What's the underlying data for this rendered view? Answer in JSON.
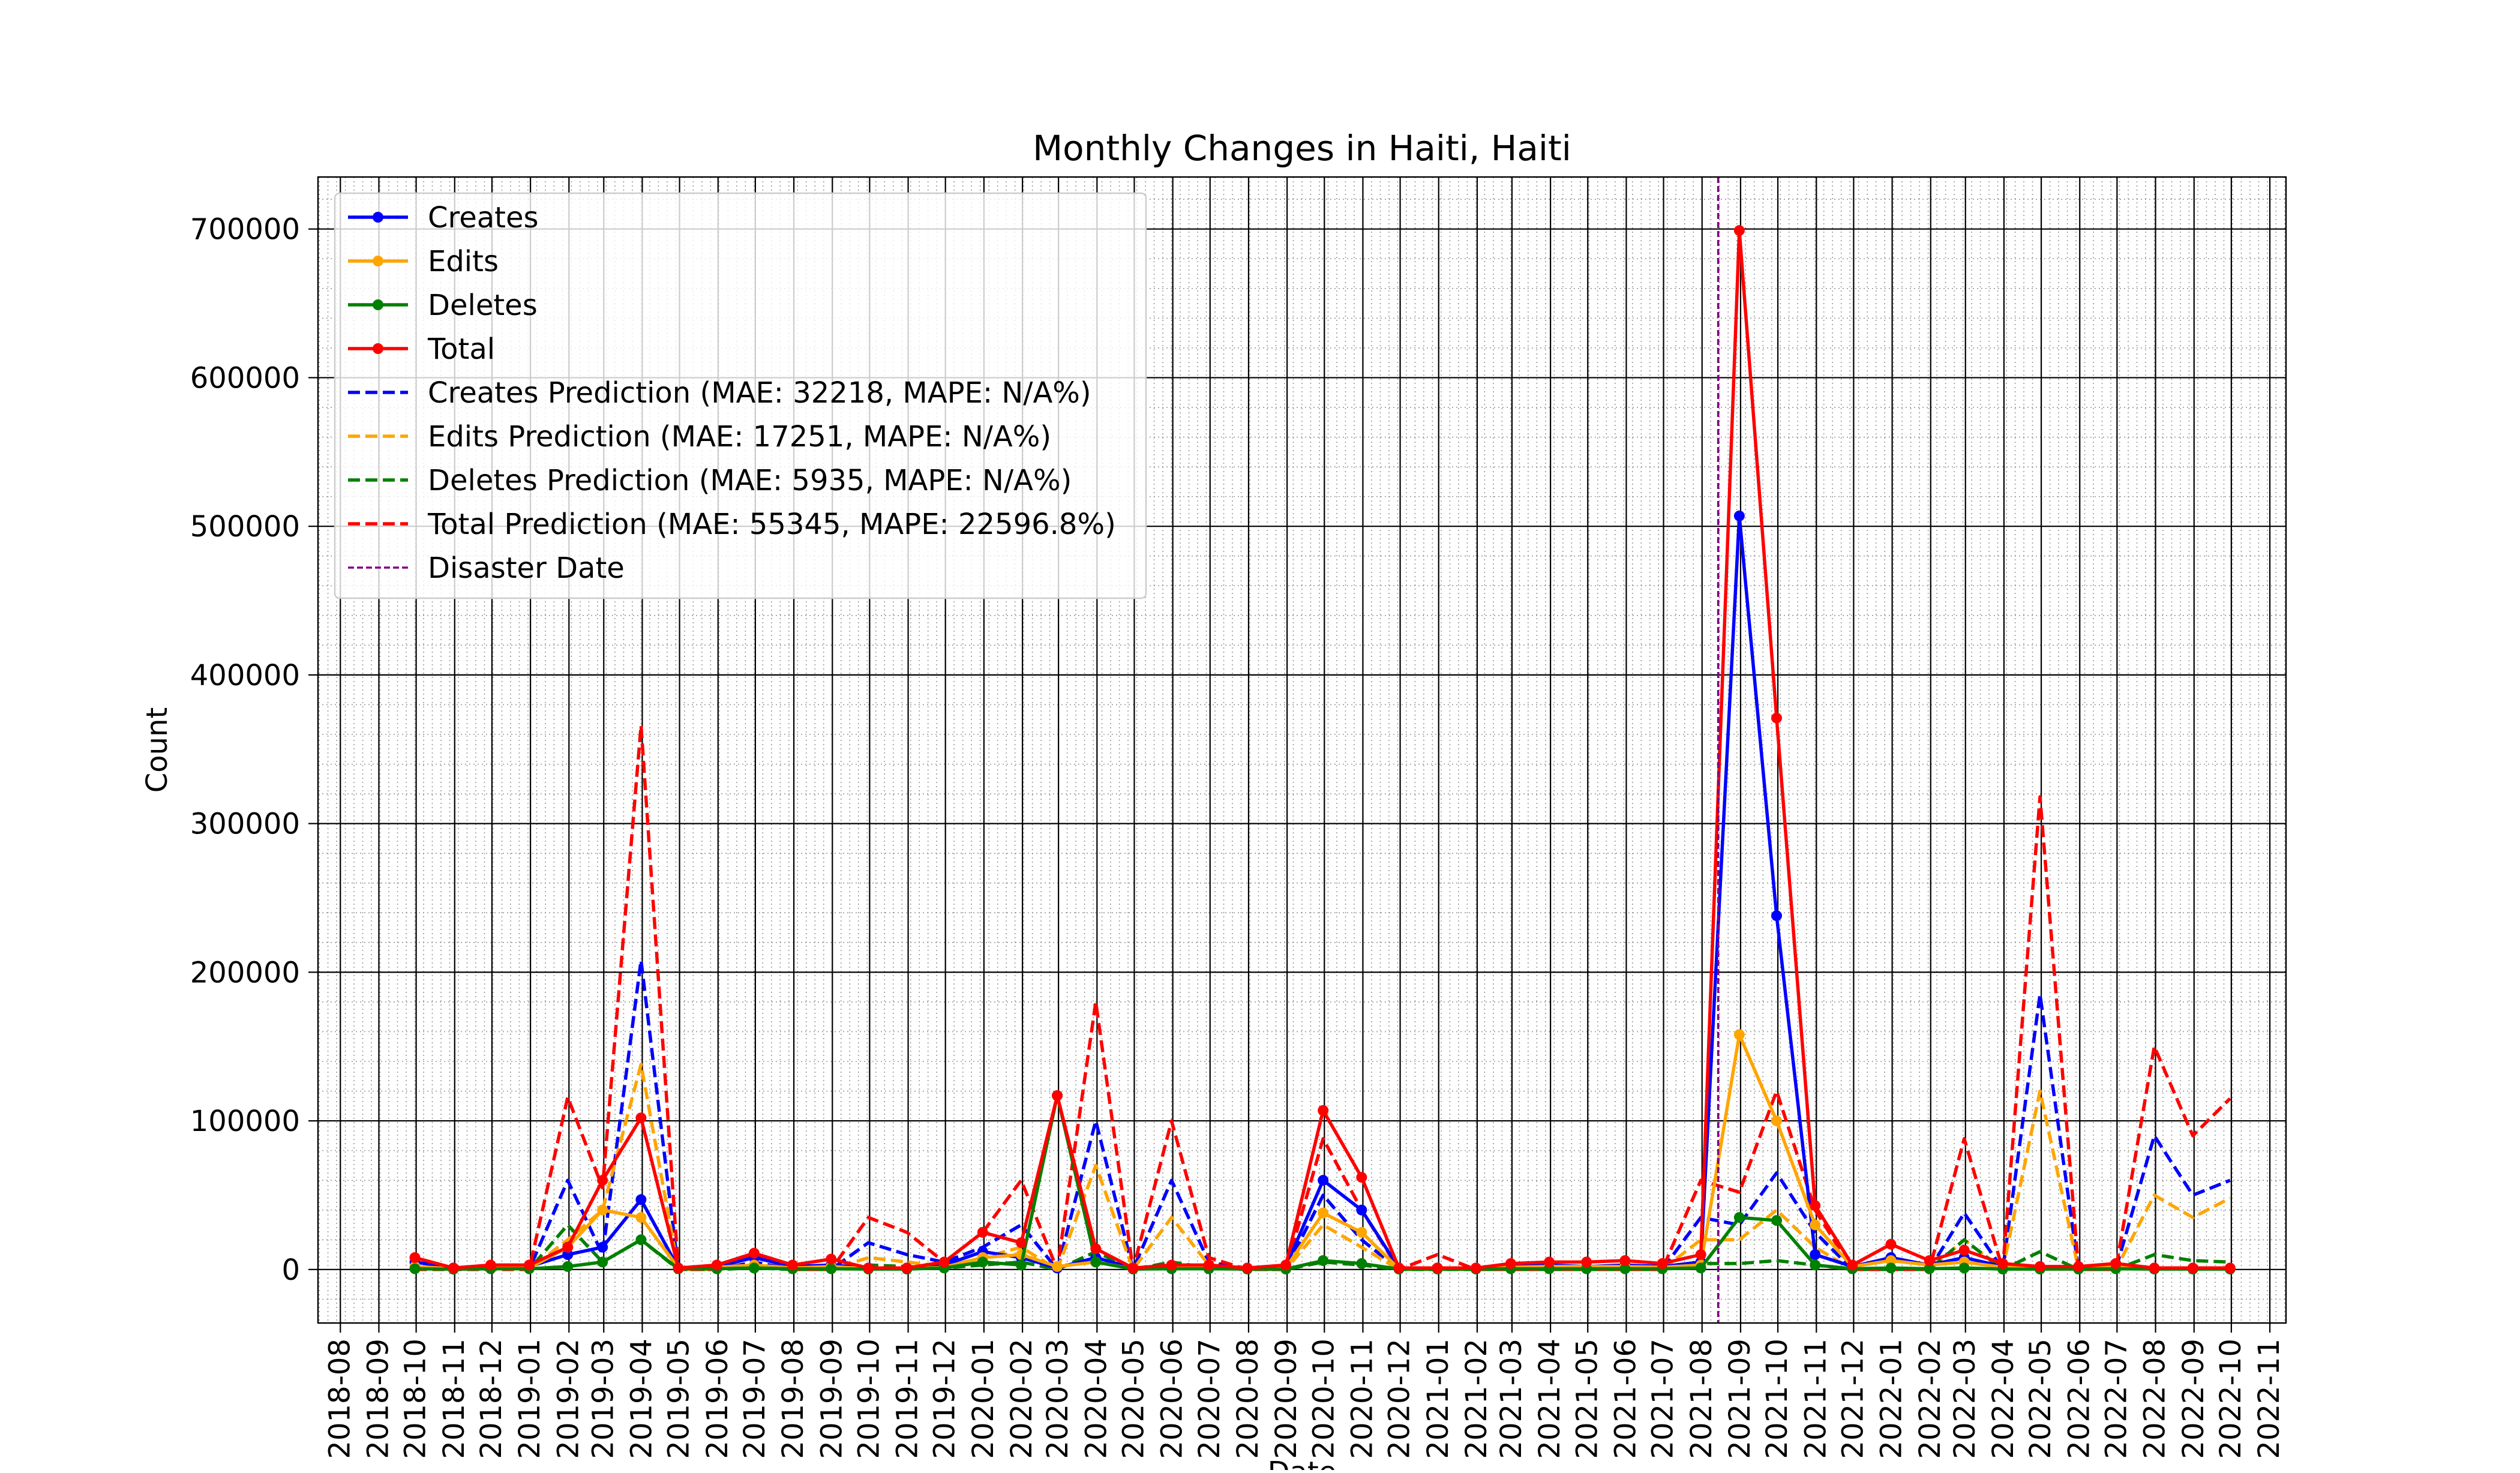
{
  "chart_data": {
    "type": "line",
    "title": "Monthly Changes in Haiti, Haiti",
    "xlabel": "Date",
    "ylabel": "Count",
    "ylim": [
      -36000,
      735000
    ],
    "xlim": [
      "2018-07-14",
      "2022-11-14"
    ],
    "grid": true,
    "legend_position": "top-left",
    "yticks": [
      0,
      100000,
      200000,
      300000,
      400000,
      500000,
      600000,
      700000
    ],
    "yticklabels": [
      "0",
      "100000",
      "200000",
      "300000",
      "400000",
      "500000",
      "600000",
      "700000"
    ],
    "xticks": [
      "2018-08",
      "2018-09",
      "2018-10",
      "2018-11",
      "2018-12",
      "2019-01",
      "2019-02",
      "2019-03",
      "2019-04",
      "2019-05",
      "2019-06",
      "2019-07",
      "2019-08",
      "2019-09",
      "2019-10",
      "2019-11",
      "2019-12",
      "2020-01",
      "2020-02",
      "2020-03",
      "2020-04",
      "2020-05",
      "2020-06",
      "2020-07",
      "2020-08",
      "2020-09",
      "2020-10",
      "2020-11",
      "2020-12",
      "2021-01",
      "2021-02",
      "2021-03",
      "2021-04",
      "2021-05",
      "2021-06",
      "2021-07",
      "2021-08",
      "2021-09",
      "2021-10",
      "2021-11",
      "2021-12",
      "2022-01",
      "2022-02",
      "2022-03",
      "2022-04",
      "2022-05",
      "2022-06",
      "2022-07",
      "2022-08",
      "2022-09",
      "2022-10",
      "2022-11"
    ],
    "x": [
      "2018-09-30",
      "2018-10-31",
      "2018-11-30",
      "2018-12-31",
      "2019-01-31",
      "2019-02-28",
      "2019-03-31",
      "2019-04-30",
      "2019-05-31",
      "2019-06-30",
      "2019-07-31",
      "2019-08-31",
      "2019-09-30",
      "2019-10-31",
      "2019-11-30",
      "2019-12-31",
      "2020-01-31",
      "2020-02-29",
      "2020-03-31",
      "2020-04-30",
      "2020-05-31",
      "2020-06-30",
      "2020-07-31",
      "2020-08-31",
      "2020-09-30",
      "2020-10-31",
      "2020-11-30",
      "2020-12-31",
      "2021-01-31",
      "2021-02-28",
      "2021-03-31",
      "2021-04-30",
      "2021-05-31",
      "2021-06-30",
      "2021-07-31",
      "2021-08-31",
      "2021-09-30",
      "2021-10-31",
      "2021-11-30",
      "2021-12-31",
      "2022-01-31",
      "2022-02-28",
      "2022-03-31",
      "2022-04-30",
      "2022-05-31",
      "2022-06-30",
      "2022-07-31",
      "2022-08-31",
      "2022-09-30"
    ],
    "series": [
      {
        "name": "Creates",
        "color": "#0000ff",
        "style": "solid-marker",
        "values": [
          5000,
          1000,
          1500,
          2000,
          10000,
          15000,
          47000,
          1000,
          2000,
          8000,
          2000,
          3000,
          1000,
          1000,
          3000,
          12000,
          8000,
          1000,
          8000,
          1000,
          2000,
          2000,
          500,
          2000,
          60000,
          40000,
          1000,
          1000,
          500,
          2000,
          3000,
          2000,
          3000,
          2000,
          5000,
          507000,
          238000,
          10000,
          2000,
          8000,
          3000,
          8000,
          2000,
          1000,
          1000,
          2000,
          500,
          500,
          500
        ]
      },
      {
        "name": "Edits",
        "color": "#ffa500",
        "style": "solid-marker",
        "values": [
          2000,
          500,
          1000,
          1000,
          15000,
          40000,
          35000,
          1000,
          1500,
          3000,
          1000,
          2000,
          500,
          500,
          1500,
          8000,
          10000,
          2000,
          5000,
          500,
          1500,
          1500,
          500,
          1000,
          38000,
          25000,
          500,
          500,
          500,
          1500,
          2000,
          2000,
          2000,
          1500,
          3000,
          158000,
          100000,
          30000,
          2000,
          6000,
          3000,
          5000,
          1500,
          1000,
          1000,
          2000,
          500,
          500,
          500
        ]
      },
      {
        "name": "Deletes",
        "color": "#008000",
        "style": "solid-marker",
        "values": [
          500,
          200,
          500,
          500,
          2000,
          5000,
          20000,
          500,
          500,
          1000,
          500,
          500,
          300,
          300,
          1000,
          5000,
          3000,
          117000,
          5000,
          300,
          500,
          500,
          300,
          300,
          6000,
          4000,
          300,
          300,
          300,
          500,
          500,
          500,
          500,
          500,
          1000,
          35000,
          33000,
          3000,
          500,
          1000,
          500,
          1000,
          300,
          300,
          300,
          500,
          300,
          300,
          300
        ]
      },
      {
        "name": "Total",
        "color": "#ff0000",
        "style": "solid-marker",
        "values": [
          8000,
          1000,
          3000,
          3000,
          15000,
          60000,
          102000,
          1000,
          3000,
          11000,
          3000,
          7000,
          1000,
          1000,
          5000,
          25000,
          18000,
          117000,
          14000,
          1000,
          3000,
          3000,
          1000,
          3000,
          107000,
          62000,
          1000,
          1000,
          1000,
          4000,
          5000,
          5000,
          6000,
          4000,
          10000,
          699000,
          371000,
          43000,
          3000,
          17000,
          6000,
          13000,
          4000,
          2000,
          2000,
          4000,
          1000,
          1000,
          1000
        ]
      },
      {
        "name": "Creates Prediction (MAE: 32218, MAPE: N/A%)",
        "color": "#0000ff",
        "style": "dashed",
        "values": [
          0,
          0,
          0,
          0,
          60000,
          10000,
          208000,
          0,
          0,
          5000,
          0,
          0,
          18000,
          10000,
          5000,
          15000,
          30000,
          0,
          100000,
          0,
          60000,
          5000,
          0,
          0,
          50000,
          20000,
          0,
          0,
          0,
          0,
          0,
          0,
          0,
          0,
          35000,
          30000,
          65000,
          25000,
          0,
          0,
          0,
          38000,
          0,
          185000,
          0,
          0,
          90000,
          50000,
          60000
        ]
      },
      {
        "name": "Edits Prediction (MAE: 17251, MAPE: N/A%)",
        "color": "#ffa500",
        "style": "dashed",
        "values": [
          0,
          0,
          0,
          0,
          20000,
          40000,
          138000,
          0,
          0,
          3000,
          0,
          0,
          8000,
          5000,
          2000,
          8000,
          15000,
          0,
          70000,
          0,
          35000,
          3000,
          0,
          0,
          30000,
          15000,
          0,
          0,
          0,
          0,
          0,
          0,
          0,
          0,
          20000,
          20000,
          40000,
          15000,
          0,
          0,
          0,
          20000,
          0,
          120000,
          0,
          0,
          50000,
          35000,
          48000
        ]
      },
      {
        "name": "Deletes Prediction (MAE: 5935, MAPE: N/A%)",
        "color": "#008000",
        "style": "dashed",
        "values": [
          0,
          0,
          0,
          0,
          30000,
          5000,
          20000,
          0,
          0,
          1000,
          0,
          0,
          3000,
          2000,
          1000,
          3000,
          5000,
          0,
          12000,
          0,
          5000,
          1000,
          0,
          0,
          5000,
          3000,
          0,
          0,
          0,
          0,
          0,
          0,
          0,
          0,
          4000,
          4000,
          6000,
          3000,
          0,
          0,
          0,
          20000,
          0,
          12000,
          0,
          0,
          10000,
          6000,
          5000
        ]
      },
      {
        "name": "Total Prediction (MAE: 55345, MAPE: 22596.8%)",
        "color": "#ff0000",
        "style": "dashed",
        "values": [
          0,
          0,
          0,
          0,
          116000,
          55000,
          366000,
          0,
          0,
          10000,
          0,
          0,
          35000,
          25000,
          5000,
          25000,
          60000,
          0,
          180000,
          0,
          100000,
          8000,
          0,
          0,
          88000,
          40000,
          0,
          10000,
          0,
          0,
          0,
          0,
          0,
          0,
          60000,
          52000,
          120000,
          40000,
          0,
          0,
          0,
          88000,
          0,
          318000,
          0,
          0,
          150000,
          90000,
          115000
        ]
      }
    ],
    "markers": [
      {
        "name": "Disaster Date",
        "color": "#800080",
        "style": "dashed-vertical",
        "x": "2021-08-14"
      }
    ]
  }
}
